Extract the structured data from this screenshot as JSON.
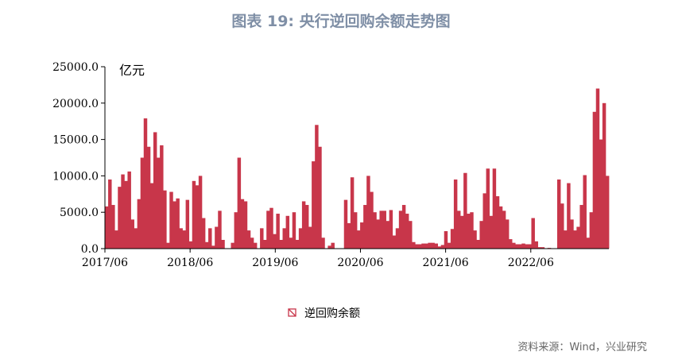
{
  "title": "图表 19: 央行逆回购余额走势图",
  "source": "资料来源：Wind，兴业研究",
  "colors": {
    "bar": "#c8364a",
    "axis": "#000000",
    "title": "#7f8fa6"
  },
  "chart_data": {
    "type": "bar",
    "ylabel": "亿元",
    "ylim": [
      0,
      25000
    ],
    "yticks": [
      "0.0",
      "5000.0",
      "10000.0",
      "15000.0",
      "20000.0",
      "25000.0"
    ],
    "xticks": [
      "2017/06",
      "2018/06",
      "2019/06",
      "2020/06",
      "2021/06",
      "2022/06"
    ],
    "grid": false,
    "legend_position": "bottom-center",
    "series": [
      {
        "name": "逆回购余额",
        "x_range": [
          "2017/06",
          "2023/05"
        ],
        "values": [
          5800,
          9500,
          6000,
          2500,
          8500,
          10200,
          9300,
          10600,
          4000,
          2800,
          6800,
          12500,
          17900,
          14000,
          9000,
          16000,
          12500,
          14200,
          8000,
          800,
          7800,
          6500,
          6900,
          2800,
          2500,
          6700,
          1000,
          9300,
          8700,
          10000,
          4200,
          900,
          2800,
          400,
          3000,
          5200,
          1200,
          0,
          0,
          800,
          5000,
          12500,
          6800,
          6500,
          2500,
          1500,
          800,
          0,
          2800,
          1200,
          5200,
          5600,
          2000,
          4800,
          1200,
          2800,
          4500,
          1500,
          5000,
          1200,
          2800,
          6500,
          6000,
          3000,
          12000,
          17000,
          14000,
          1500,
          0,
          400,
          800,
          0,
          0,
          0,
          6700,
          3500,
          9800,
          5000,
          2500,
          3600,
          6000,
          10000,
          7800,
          5000,
          4000,
          5200,
          5200,
          3800,
          5300,
          1800,
          2800,
          5200,
          6000,
          4800,
          3800,
          900,
          600,
          600,
          700,
          700,
          800,
          800,
          700,
          300,
          500,
          2400,
          800,
          2700,
          9500,
          5200,
          4500,
          10400,
          4800,
          5000,
          2500,
          1200,
          3800,
          7600,
          11000,
          4500,
          11000,
          7200,
          5800,
          5200,
          4000,
          1300,
          800,
          600,
          600,
          700,
          600,
          600,
          4200,
          1000,
          200,
          200,
          0,
          100,
          0,
          0,
          9500,
          6200,
          2500,
          9000,
          4000,
          2500,
          3000,
          6000,
          10100,
          1500,
          5000,
          18800,
          22000,
          15000,
          20000,
          10000
        ]
      }
    ]
  }
}
